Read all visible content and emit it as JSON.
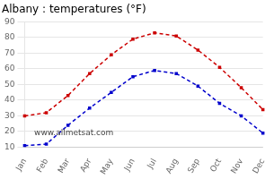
{
  "chart_data": {
    "type": "line",
    "title": "Albany : temperatures (°F)",
    "categories": [
      "Jan",
      "Feb",
      "Mar",
      "Apr",
      "May",
      "Jun",
      "Jul",
      "Aug",
      "Sep",
      "Oct",
      "Nov",
      "Dec"
    ],
    "series": [
      {
        "color": "#cc0000",
        "marker": "square",
        "line_style": "dashed",
        "values": [
          30,
          32,
          43,
          57,
          69,
          79,
          83,
          81,
          72,
          61,
          48,
          34
        ]
      },
      {
        "color": "#0000cc",
        "marker": "square",
        "line_style": "dashed",
        "values": [
          11,
          12,
          24,
          35,
          45,
          55,
          59,
          57,
          49,
          38,
          30,
          19
        ]
      }
    ],
    "ylim": [
      10,
      90
    ],
    "yticks": [
      10,
      20,
      30,
      40,
      50,
      60,
      70,
      80,
      90
    ],
    "grid": true,
    "annotations": [
      "www.allmetsat.com"
    ]
  }
}
